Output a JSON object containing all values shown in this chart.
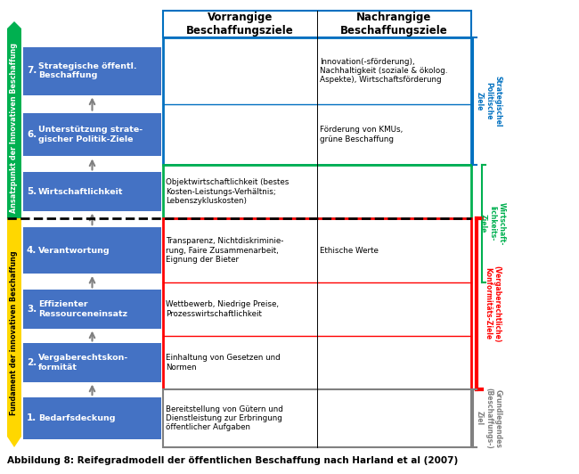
{
  "title": "Abbildung 8: Reifegradmodell der öffentlichen Beschaffung nach Harland et al (2007)",
  "header_left": "Vorrangige\nBeschaffungsziele",
  "header_right": "Nachrangige\nBeschaffungsziele",
  "levels": [
    {
      "num": "7.",
      "text": "Strategische öffentl.\nBeschaffung"
    },
    {
      "num": "6.",
      "text": "Unterstützung strate-\ngischer Politik-Ziele"
    },
    {
      "num": "5.",
      "text": "Wirtschaftlichkeit"
    },
    {
      "num": "4.",
      "text": "Verantwortung"
    },
    {
      "num": "3.",
      "text": "Effizienter\nRessourceneinsatz"
    },
    {
      "num": "2.",
      "text": "Vergaberechtskon-\nformität"
    },
    {
      "num": "1.",
      "text": "Bedarfsdeckung"
    }
  ],
  "cell_texts_left": [
    "",
    "",
    "Objektwirtschaftlichkeit (bestes\nKosten-Leistungs-Verhältnis;\nLebenszykluskosten)",
    "Transparenz, Nichtdiskriminie-\nrung, Faire Zusammenarbeit,\nEignung der Bieter",
    "Wettbewerb, Niedrige Preise,\nProzesswirtschaftlichkeit",
    "Einhaltung von Gesetzen und\nNormen",
    "Bereitstellung von Gütern und\nDienstleistung zur Erbringung\nöffentlicher Aufgaben"
  ],
  "cell_texts_right": [
    "Innovation(-sförderung),\nNachhaltigkeit (soziale & ökolog.\nAspekte), Wirtschaftsförderung",
    "Förderung von KMUs,\ngrüne Beschaffung",
    "",
    "Ethische Werte",
    "",
    "",
    ""
  ],
  "left_bar_top_text": "Ansatzpunkt der Innovativen Beschaffung",
  "left_bar_bottom_text": "Fundament der innovativen Beschaffung",
  "right_label_blue": "Strategischel\nPolitische\nZiele",
  "right_label_green": "Wirtschaft-\nlichkeits-\nZiele",
  "right_label_red": "(Vergaberechtliche)\nKonformitäts-Ziele",
  "right_label_gray": "Grundlegendes\n(Beschaffungs-)\nZiel",
  "box_colors": {
    "blue_outline": "#0070C0",
    "green_outline": "#00B050",
    "red_outline": "#FF0000",
    "gray_outline": "#808080",
    "level_box": "#4472C4",
    "level_text": "#FFFFFF",
    "left_bar_top": "#00B050",
    "left_bar_bottom": "#FFD700"
  },
  "figsize": [
    6.5,
    5.32
  ],
  "dpi": 100
}
